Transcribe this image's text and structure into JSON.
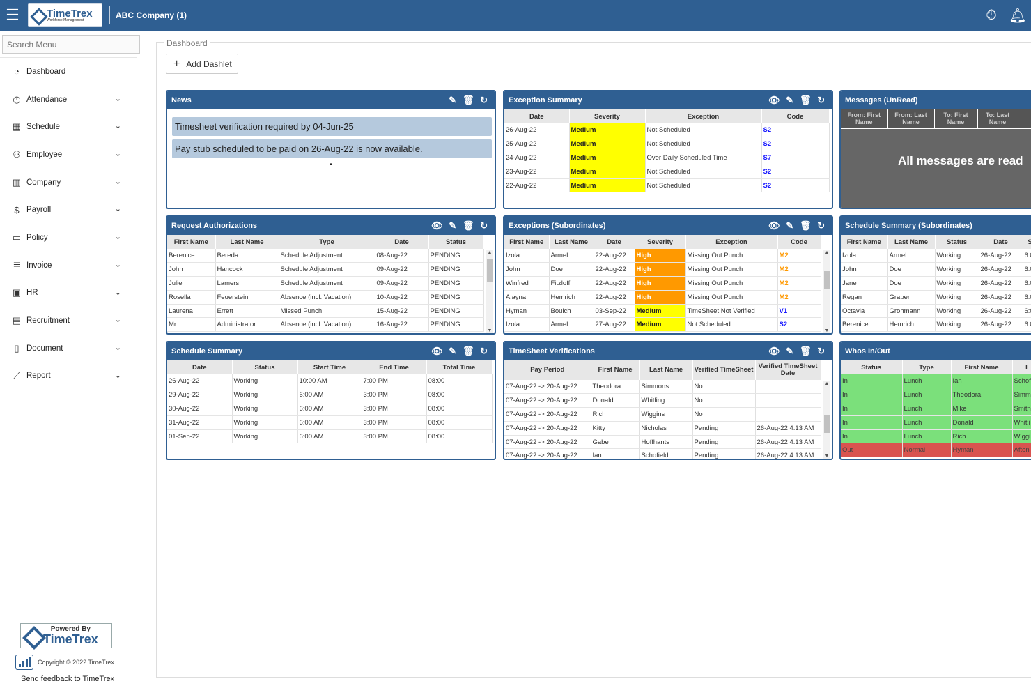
{
  "header": {
    "logo_text": "TimeTrex",
    "logo_sub": "Workforce Management",
    "company": "ABC Company (1)"
  },
  "sidebar": {
    "search_placeholder": "Search Menu",
    "items": [
      {
        "label": "Dashboard",
        "icon": "dashboard-icon"
      },
      {
        "label": "Attendance",
        "icon": "clock-icon"
      },
      {
        "label": "Schedule",
        "icon": "calendar-icon"
      },
      {
        "label": "Employee",
        "icon": "people-icon"
      },
      {
        "label": "Company",
        "icon": "building-icon"
      },
      {
        "label": "Payroll",
        "icon": "dollar-icon"
      },
      {
        "label": "Policy",
        "icon": "policy-icon"
      },
      {
        "label": "Invoice",
        "icon": "invoice-icon"
      },
      {
        "label": "HR",
        "icon": "briefcase-icon"
      },
      {
        "label": "Recruitment",
        "icon": "recruitment-icon"
      },
      {
        "label": "Document",
        "icon": "document-icon"
      },
      {
        "label": "Report",
        "icon": "chart-line-icon"
      }
    ],
    "powered_by": "Powered By",
    "powered_brand": "TimeTrex",
    "copyright": "Copyright © 2022 TimeTrex.",
    "feedback": "Send feedback to TimeTrex"
  },
  "main": {
    "breadcrumb": "Dashboard",
    "add_dashlet": "Add Dashlet"
  },
  "news": {
    "title": "News",
    "items": [
      "Timesheet verification required by 04-Jun-25",
      "Pay stub scheduled to be paid on 26-Aug-22 is now available."
    ]
  },
  "exception_summary": {
    "title": "Exception Summary",
    "headers": [
      "Date",
      "Severity",
      "Exception",
      "Code"
    ],
    "rows": [
      [
        "26-Aug-22",
        "Medium",
        "Not Scheduled",
        "S2"
      ],
      [
        "25-Aug-22",
        "Medium",
        "Not Scheduled",
        "S2"
      ],
      [
        "24-Aug-22",
        "Medium",
        "Over Daily Scheduled Time",
        "S7"
      ],
      [
        "23-Aug-22",
        "Medium",
        "Not Scheduled",
        "S2"
      ],
      [
        "22-Aug-22",
        "Medium",
        "Not Scheduled",
        "S2"
      ]
    ]
  },
  "messages": {
    "title": "Messages (UnRead)",
    "headers": [
      "From: First Name",
      "From: Last Name",
      "To: First Name",
      "To: Last Name"
    ],
    "empty": "All messages are read"
  },
  "request_auth": {
    "title": "Request Authorizations",
    "headers": [
      "First Name",
      "Last Name",
      "Type",
      "Date",
      "Status"
    ],
    "rows": [
      [
        "Berenice",
        "Bereda",
        "Schedule Adjustment",
        "08-Aug-22",
        "PENDING"
      ],
      [
        "John",
        "Hancock",
        "Schedule Adjustment",
        "09-Aug-22",
        "PENDING"
      ],
      [
        "Julie",
        "Lamers",
        "Schedule Adjustment",
        "09-Aug-22",
        "PENDING"
      ],
      [
        "Rosella",
        "Feuerstein",
        "Absence (incl. Vacation)",
        "10-Aug-22",
        "PENDING"
      ],
      [
        "Laurena",
        "Errett",
        "Missed Punch",
        "15-Aug-22",
        "PENDING"
      ],
      [
        "Mr.",
        "Administrator",
        "Absence (incl. Vacation)",
        "16-Aug-22",
        "PENDING"
      ]
    ]
  },
  "exceptions_sub": {
    "title": "Exceptions (Subordinates)",
    "headers": [
      "First Name",
      "Last Name",
      "Date",
      "Severity",
      "Exception",
      "Code"
    ],
    "rows": [
      [
        "Izola",
        "Armel",
        "22-Aug-22",
        "High",
        "Missing Out Punch",
        "M2"
      ],
      [
        "John",
        "Doe",
        "22-Aug-22",
        "High",
        "Missing Out Punch",
        "M2"
      ],
      [
        "Winfred",
        "Fitzloff",
        "22-Aug-22",
        "High",
        "Missing Out Punch",
        "M2"
      ],
      [
        "Alayna",
        "Hemrich",
        "22-Aug-22",
        "High",
        "Missing Out Punch",
        "M2"
      ],
      [
        "Hyman",
        "Boulch",
        "03-Sep-22",
        "Medium",
        "TimeSheet Not Verified",
        "V1"
      ],
      [
        "Izola",
        "Armel",
        "27-Aug-22",
        "Medium",
        "Not Scheduled",
        "S2"
      ]
    ]
  },
  "schedule_sub": {
    "title": "Schedule Summary (Subordinates)",
    "headers": [
      "First Name",
      "Last Name",
      "Status",
      "Date",
      "S"
    ],
    "rows": [
      [
        "Izola",
        "Armel",
        "Working",
        "26-Aug-22",
        "6:0"
      ],
      [
        "John",
        "Doe",
        "Working",
        "26-Aug-22",
        "6:0"
      ],
      [
        "Jane",
        "Doe",
        "Working",
        "26-Aug-22",
        "6:0"
      ],
      [
        "Regan",
        "Graper",
        "Working",
        "26-Aug-22",
        "6:0"
      ],
      [
        "Octavia",
        "Grohmann",
        "Working",
        "26-Aug-22",
        "6:0"
      ],
      [
        "Berenice",
        "Hemrich",
        "Working",
        "26-Aug-22",
        "6:0"
      ]
    ]
  },
  "schedule_summary": {
    "title": "Schedule Summary",
    "headers": [
      "Date",
      "Status",
      "Start Time",
      "End Time",
      "Total Time"
    ],
    "rows": [
      [
        "26-Aug-22",
        "Working",
        "10:00 AM",
        "7:00 PM",
        "08:00"
      ],
      [
        "29-Aug-22",
        "Working",
        "6:00 AM",
        "3:00 PM",
        "08:00"
      ],
      [
        "30-Aug-22",
        "Working",
        "6:00 AM",
        "3:00 PM",
        "08:00"
      ],
      [
        "31-Aug-22",
        "Working",
        "6:00 AM",
        "3:00 PM",
        "08:00"
      ],
      [
        "01-Sep-22",
        "Working",
        "6:00 AM",
        "3:00 PM",
        "08:00"
      ]
    ]
  },
  "timesheet_ver": {
    "title": "TimeSheet Verifications",
    "headers": [
      "Pay Period",
      "First Name",
      "Last Name",
      "Verified TimeSheet",
      "Verified TimeSheet Date"
    ],
    "rows": [
      [
        "07-Aug-22 -> 20-Aug-22",
        "Theodora",
        "Simmons",
        "No",
        ""
      ],
      [
        "07-Aug-22 -> 20-Aug-22",
        "Donald",
        "Whitling",
        "No",
        ""
      ],
      [
        "07-Aug-22 -> 20-Aug-22",
        "Rich",
        "Wiggins",
        "No",
        ""
      ],
      [
        "07-Aug-22 -> 20-Aug-22",
        "Kitty",
        "Nicholas",
        "Pending",
        "26-Aug-22 4:13 AM"
      ],
      [
        "07-Aug-22 -> 20-Aug-22",
        "Gabe",
        "Hoffhants",
        "Pending",
        "26-Aug-22 4:13 AM"
      ],
      [
        "07-Aug-22 -> 20-Aug-22",
        "Ian",
        "Schofield",
        "Pending",
        "26-Aug-22 4:13 AM"
      ]
    ]
  },
  "whos_in": {
    "title": "Whos In/Out",
    "headers": [
      "Status",
      "Type",
      "First Name",
      "L"
    ],
    "rows": [
      [
        "In",
        "Lunch",
        "Ian",
        "Schof"
      ],
      [
        "In",
        "Lunch",
        "Theodora",
        "Simm"
      ],
      [
        "In",
        "Lunch",
        "Mike",
        "Smith"
      ],
      [
        "In",
        "Lunch",
        "Donald",
        "Whitli"
      ],
      [
        "In",
        "Lunch",
        "Rich",
        "Wiggi"
      ],
      [
        "Out",
        "Normal",
        "Hyman",
        "Afton"
      ]
    ]
  },
  "colors": {
    "brand": "#2f5f92",
    "medium": "#ffff00",
    "high": "#ff9900",
    "in": "#7be07b",
    "out": "#d9534f",
    "code_s": "#1a1aff",
    "code_m": "#ff9900"
  }
}
